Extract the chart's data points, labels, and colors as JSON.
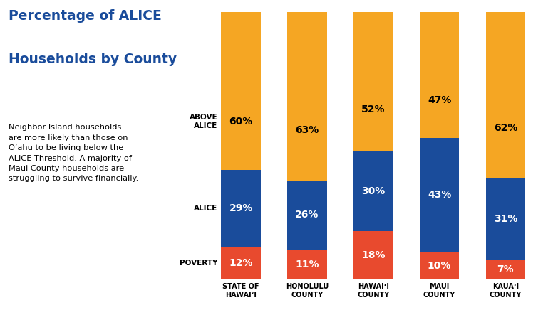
{
  "title_line1": "Percentage of ALICE",
  "title_line2": "Households by County",
  "description": "Neighbor Island households\nare more likely than those on\nO‘ahu to be living below the\nALICE Threshold. A majority of\nMaui County households are\nstruggling to survive financially.",
  "categories": [
    "STATE OF\nHAWAIʻI",
    "HONOLULU\nCOUNTY",
    "HAWAIʻI\nCOUNTY",
    "MAUI\nCOUNTY",
    "KAUAʻI\nCOUNTY"
  ],
  "poverty": [
    12,
    11,
    18,
    10,
    7
  ],
  "alice": [
    29,
    26,
    30,
    43,
    31
  ],
  "above_alice": [
    60,
    63,
    52,
    47,
    62
  ],
  "color_poverty": "#E84A2E",
  "color_alice": "#1A4C9B",
  "color_above": "#F5A623",
  "background_color": "#FFFFFF",
  "row_label_poverty": "POVERTY",
  "row_label_alice": "ALICE",
  "row_label_above": "ABOVE\nALICE",
  "title_color": "#1A4C9B",
  "label_color_above": "#000000",
  "label_color_alice": "#FFFFFF",
  "label_color_poverty": "#FFFFFF",
  "bar_width": 0.6,
  "ylim": [
    0,
    100
  ]
}
